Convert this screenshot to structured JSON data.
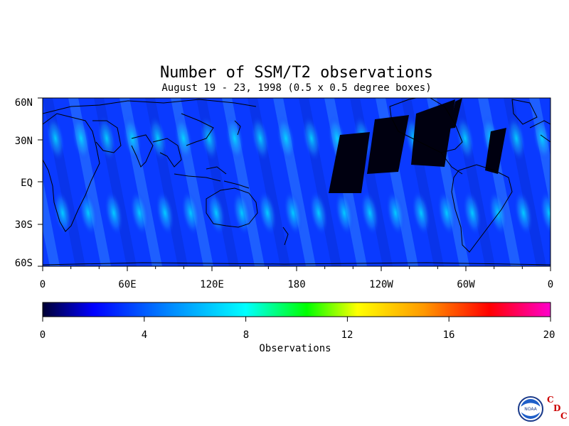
{
  "map": {
    "title": "Number of SSM/T2 observations",
    "subtitle": "August 19 - 23, 1998 (0.5 x 0.5 degree boxes)",
    "lat_labels": [
      "60N",
      "30N",
      "EQ",
      "30S",
      "60S"
    ],
    "lon_labels": [
      "0",
      "60E",
      "120E",
      "180",
      "120W",
      "60W",
      "0"
    ],
    "extent": {
      "lon": [
        0,
        360
      ],
      "lat": [
        -60,
        60
      ]
    },
    "field": "Number of SSM/T2 observations per 0.5 x 0.5 degree box",
    "value_range": [
      0,
      20
    ],
    "background_color": "#0a3aff"
  },
  "colorbar": {
    "title": "Observations",
    "tick_labels": [
      "0",
      "4",
      "8",
      "12",
      "16",
      "20"
    ],
    "colors": [
      "#000033",
      "#0000ff",
      "#0088ff",
      "#00ffff",
      "#00ff00",
      "#ffff00",
      "#ff8800",
      "#ff0000",
      "#ff00cc"
    ]
  },
  "logo": {
    "org": "NOAA",
    "letters": [
      "C",
      "D",
      "C"
    ]
  }
}
